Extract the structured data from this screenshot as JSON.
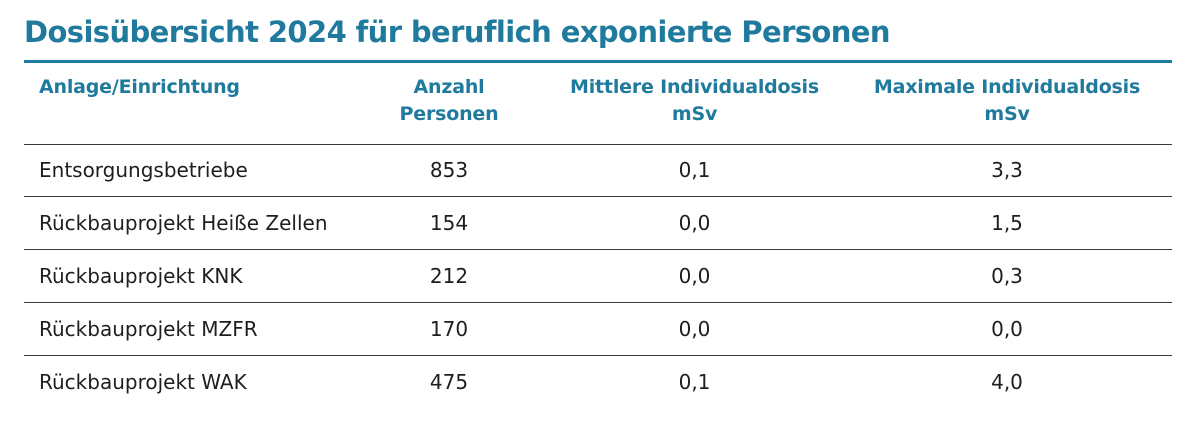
{
  "title": "Dosisübersicht 2024 für beruflich exponierte Personen",
  "colors": {
    "accent": "#1F7A9E",
    "text": "#1E1E1E",
    "rule": "#3A3A3A"
  },
  "table": {
    "headers": [
      {
        "line1": "Anlage/Einrichtung",
        "line2": ""
      },
      {
        "line1": "Anzahl",
        "line2": "Personen"
      },
      {
        "line1": "Mittlere Individualdosis",
        "line2": "mSv"
      },
      {
        "line1": "Maximale Individualdosis",
        "line2": "mSv"
      }
    ],
    "rows": [
      {
        "facility": "Entsorgungsbetriebe",
        "persons": "853",
        "mean_dose": "0,1",
        "max_dose": "3,3"
      },
      {
        "facility": "Rückbauprojekt Heiße Zellen",
        "persons": "154",
        "mean_dose": "0,0",
        "max_dose": "1,5"
      },
      {
        "facility": "Rückbauprojekt KNK",
        "persons": "212",
        "mean_dose": "0,0",
        "max_dose": "0,3"
      },
      {
        "facility": "Rückbauprojekt MZFR",
        "persons": "170",
        "mean_dose": "0,0",
        "max_dose": "0,0"
      },
      {
        "facility": "Rückbauprojekt WAK",
        "persons": "475",
        "mean_dose": "0,1",
        "max_dose": "4,0"
      }
    ]
  }
}
